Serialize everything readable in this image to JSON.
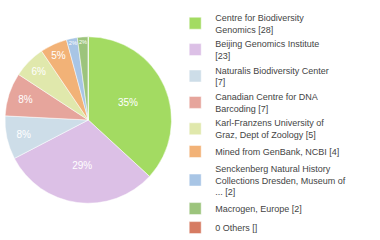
{
  "chart_data": {
    "type": "pie",
    "categories": [
      "Centre for Biodiversity Genomics [28]",
      "Beijing Genomics Institute [23]",
      "Naturalis Biodiversity Center [7]",
      "Canadian Centre for DNA Barcoding [7]",
      "Karl-Franzens University of Graz, Dept of Zoology [5]",
      "Mined from GenBank, NCBI [4]",
      "Senckenberg Natural History Collections Dresden, Museum of ... [2]",
      "Macrogen, Europe [2]",
      "0 Others []"
    ],
    "values": [
      35,
      29,
      8,
      8,
      6,
      5,
      2,
      2,
      0
    ],
    "value_labels": [
      "35%",
      "29%",
      "8%",
      "8%",
      "6%",
      "5%",
      "2%",
      "2%",
      null
    ],
    "data_labels": true,
    "colors": [
      "#a3db62",
      "#dcc0e6",
      "#cddde8",
      "#e6a59c",
      "#e0e8ac",
      "#f2b277",
      "#a8c5e5",
      "#9cc47c",
      "#d67b62"
    ],
    "legend": "right"
  }
}
